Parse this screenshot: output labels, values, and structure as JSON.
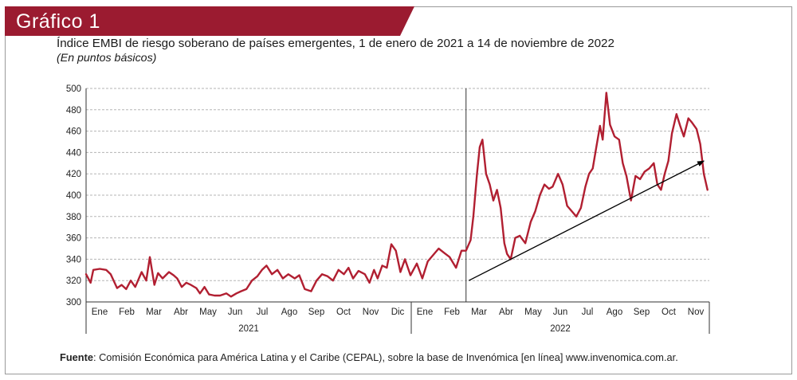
{
  "badge": {
    "label": "Gráfico 1"
  },
  "colors": {
    "brand": "#9b1b30",
    "series": "#b11f31",
    "trend": "#000000",
    "grid": "#b5b5b5"
  },
  "source": {
    "prefix": "Fuente",
    "text": ": Comisión Económica para América Latina y el Caribe (CEPAL), sobre la base de Invenómica [en línea] www.invenomica.com.ar."
  },
  "chart_data": {
    "type": "line",
    "title": "Índice EMBI de riesgo soberano de países emergentes, 1 de enero de 2021 a 14 de noviembre de 2022",
    "subtitle": "(En puntos básicos)",
    "ylim": [
      300,
      500
    ],
    "yticks": [
      300,
      320,
      340,
      360,
      380,
      400,
      420,
      440,
      460,
      480,
      500
    ],
    "grid": true,
    "months": [
      "Ene",
      "Feb",
      "Mar",
      "Abr",
      "May",
      "Jun",
      "Jul",
      "Ago",
      "Sep",
      "Oct",
      "Nov",
      "Dic",
      "Ene",
      "Feb",
      "Mar",
      "Abr",
      "May",
      "Jun",
      "Jul",
      "Ago",
      "Sep",
      "Oct",
      "Nov"
    ],
    "years": [
      {
        "label": "2021",
        "months": 12
      },
      {
        "label": "2022",
        "months": 11
      }
    ],
    "period_divider": "2022-02-22",
    "series": [
      {
        "x": [
          "2021-01-01",
          "2021-01-06",
          "2021-01-09",
          "2021-01-16",
          "2021-01-23",
          "2021-01-28",
          "2021-02-04",
          "2021-02-09",
          "2021-02-14",
          "2021-02-19",
          "2021-02-24",
          "2021-03-03",
          "2021-03-08",
          "2021-03-12",
          "2021-03-17",
          "2021-03-21",
          "2021-03-26",
          "2021-04-02",
          "2021-04-07",
          "2021-04-11",
          "2021-04-16",
          "2021-04-21",
          "2021-04-26",
          "2021-05-02",
          "2021-05-06",
          "2021-05-11",
          "2021-05-16",
          "2021-05-22",
          "2021-05-28",
          "2021-06-04",
          "2021-06-09",
          "2021-06-15",
          "2021-06-20",
          "2021-06-26",
          "2021-07-02",
          "2021-07-08",
          "2021-07-13",
          "2021-07-18",
          "2021-07-24",
          "2021-07-30",
          "2021-08-05",
          "2021-08-11",
          "2021-08-18",
          "2021-08-23",
          "2021-08-29",
          "2021-09-05",
          "2021-09-11",
          "2021-09-17",
          "2021-09-23",
          "2021-09-29",
          "2021-10-05",
          "2021-10-11",
          "2021-10-16",
          "2021-10-21",
          "2021-10-27",
          "2021-11-03",
          "2021-11-08",
          "2021-11-13",
          "2021-11-17",
          "2021-11-22",
          "2021-11-27",
          "2021-12-02",
          "2021-12-07",
          "2021-12-12",
          "2021-12-17",
          "2021-12-23",
          "2021-12-30",
          "2022-01-05",
          "2022-01-11",
          "2022-01-17",
          "2022-01-23",
          "2022-01-29",
          "2022-02-04",
          "2022-02-11",
          "2022-02-17",
          "2022-02-22",
          "2022-02-27",
          "2022-03-02",
          "2022-03-06",
          "2022-03-09",
          "2022-03-12",
          "2022-03-16",
          "2022-03-20",
          "2022-03-24",
          "2022-03-28",
          "2022-04-01",
          "2022-04-05",
          "2022-04-08",
          "2022-04-12",
          "2022-04-17",
          "2022-04-22",
          "2022-04-28",
          "2022-05-04",
          "2022-05-09",
          "2022-05-14",
          "2022-05-19",
          "2022-05-24",
          "2022-05-28",
          "2022-06-03",
          "2022-06-08",
          "2022-06-13",
          "2022-06-18",
          "2022-06-23",
          "2022-06-28",
          "2022-07-03",
          "2022-07-07",
          "2022-07-11",
          "2022-07-15",
          "2022-07-19",
          "2022-07-22",
          "2022-07-26",
          "2022-07-30",
          "2022-08-04",
          "2022-08-09",
          "2022-08-13",
          "2022-08-17",
          "2022-08-22",
          "2022-08-27",
          "2022-09-01",
          "2022-09-06",
          "2022-09-11",
          "2022-09-16",
          "2022-09-20",
          "2022-09-24",
          "2022-09-28",
          "2022-10-02",
          "2022-10-06",
          "2022-10-11",
          "2022-10-15",
          "2022-10-19",
          "2022-10-24",
          "2022-10-28",
          "2022-11-02",
          "2022-11-06",
          "2022-11-10",
          "2022-11-14"
        ],
        "y": [
          326,
          318,
          330,
          331,
          330,
          326,
          313,
          316,
          312,
          320,
          314,
          328,
          320,
          342,
          316,
          327,
          322,
          328,
          325,
          322,
          314,
          318,
          316,
          313,
          308,
          314,
          307,
          306,
          306,
          308,
          305,
          308,
          310,
          312,
          320,
          324,
          330,
          334,
          326,
          330,
          322,
          326,
          322,
          325,
          312,
          310,
          320,
          326,
          324,
          320,
          330,
          326,
          332,
          322,
          329,
          326,
          318,
          330,
          322,
          334,
          332,
          354,
          348,
          328,
          340,
          325,
          336,
          322,
          338,
          344,
          350,
          346,
          342,
          332,
          348,
          348,
          358,
          380,
          420,
          445,
          452,
          420,
          410,
          395,
          405,
          388,
          355,
          345,
          340,
          360,
          362,
          355,
          375,
          385,
          400,
          410,
          406,
          408,
          420,
          410,
          390,
          385,
          380,
          388,
          408,
          420,
          425,
          445,
          465,
          452,
          496,
          466,
          455,
          452,
          430,
          418,
          395,
          418,
          415,
          422,
          425,
          430,
          410,
          405,
          420,
          432,
          458,
          476,
          465,
          455,
          472,
          468,
          462,
          448,
          420,
          405
        ]
      }
    ],
    "trend": {
      "x": [
        "2022-02-25",
        "2022-11-10"
      ],
      "y": [
        320,
        432
      ]
    }
  }
}
